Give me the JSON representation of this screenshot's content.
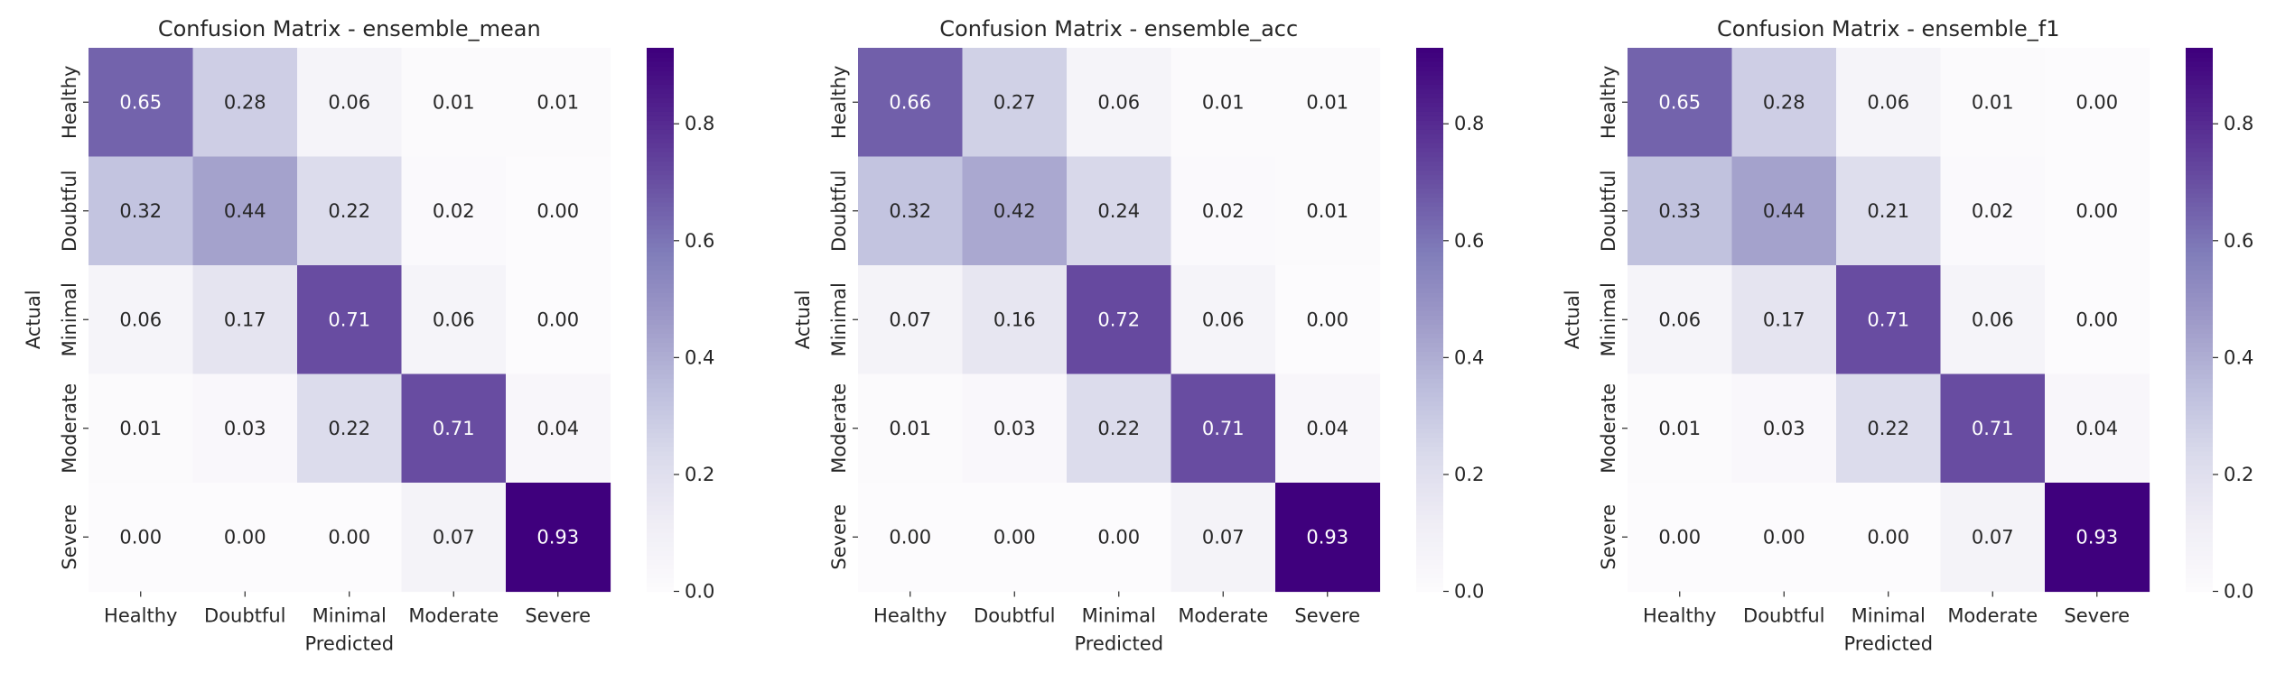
{
  "chart_data": [
    {
      "type": "heatmap",
      "title": "Confusion Matrix - ensemble_mean",
      "xlabel": "Predicted",
      "ylabel": "Actual",
      "x_categories": [
        "Healthy",
        "Doubtful",
        "Minimal",
        "Moderate",
        "Severe"
      ],
      "y_categories": [
        "Healthy",
        "Doubtful",
        "Minimal",
        "Moderate",
        "Severe"
      ],
      "values": [
        [
          0.65,
          0.28,
          0.06,
          0.01,
          0.01
        ],
        [
          0.32,
          0.44,
          0.22,
          0.02,
          0.0
        ],
        [
          0.06,
          0.17,
          0.71,
          0.06,
          0.0
        ],
        [
          0.01,
          0.03,
          0.22,
          0.71,
          0.04
        ],
        [
          0.0,
          0.0,
          0.0,
          0.07,
          0.93
        ]
      ],
      "colorbar": {
        "range": [
          0,
          0.93
        ],
        "ticks": [
          "0.0",
          "0.2",
          "0.4",
          "0.6",
          "0.8"
        ],
        "colormap": "Purples"
      }
    },
    {
      "type": "heatmap",
      "title": "Confusion Matrix - ensemble_acc",
      "xlabel": "Predicted",
      "ylabel": "Actual",
      "x_categories": [
        "Healthy",
        "Doubtful",
        "Minimal",
        "Moderate",
        "Severe"
      ],
      "y_categories": [
        "Healthy",
        "Doubtful",
        "Minimal",
        "Moderate",
        "Severe"
      ],
      "values": [
        [
          0.66,
          0.27,
          0.06,
          0.01,
          0.01
        ],
        [
          0.32,
          0.42,
          0.24,
          0.02,
          0.01
        ],
        [
          0.07,
          0.16,
          0.72,
          0.06,
          0.0
        ],
        [
          0.01,
          0.03,
          0.22,
          0.71,
          0.04
        ],
        [
          0.0,
          0.0,
          0.0,
          0.07,
          0.93
        ]
      ],
      "colorbar": {
        "range": [
          0,
          0.93
        ],
        "ticks": [
          "0.0",
          "0.2",
          "0.4",
          "0.6",
          "0.8"
        ],
        "colormap": "Purples"
      }
    },
    {
      "type": "heatmap",
      "title": "Confusion Matrix - ensemble_f1",
      "xlabel": "Predicted",
      "ylabel": "Actual",
      "x_categories": [
        "Healthy",
        "Doubtful",
        "Minimal",
        "Moderate",
        "Severe"
      ],
      "y_categories": [
        "Healthy",
        "Doubtful",
        "Minimal",
        "Moderate",
        "Severe"
      ],
      "values": [
        [
          0.65,
          0.28,
          0.06,
          0.01,
          0.0
        ],
        [
          0.33,
          0.44,
          0.21,
          0.02,
          0.0
        ],
        [
          0.06,
          0.17,
          0.71,
          0.06,
          0.0
        ],
        [
          0.01,
          0.03,
          0.22,
          0.71,
          0.04
        ],
        [
          0.0,
          0.0,
          0.0,
          0.07,
          0.93
        ]
      ],
      "colorbar": {
        "range": [
          0,
          0.93
        ],
        "ticks": [
          "0.0",
          "0.2",
          "0.4",
          "0.6",
          "0.8"
        ],
        "colormap": "Purples"
      }
    }
  ]
}
